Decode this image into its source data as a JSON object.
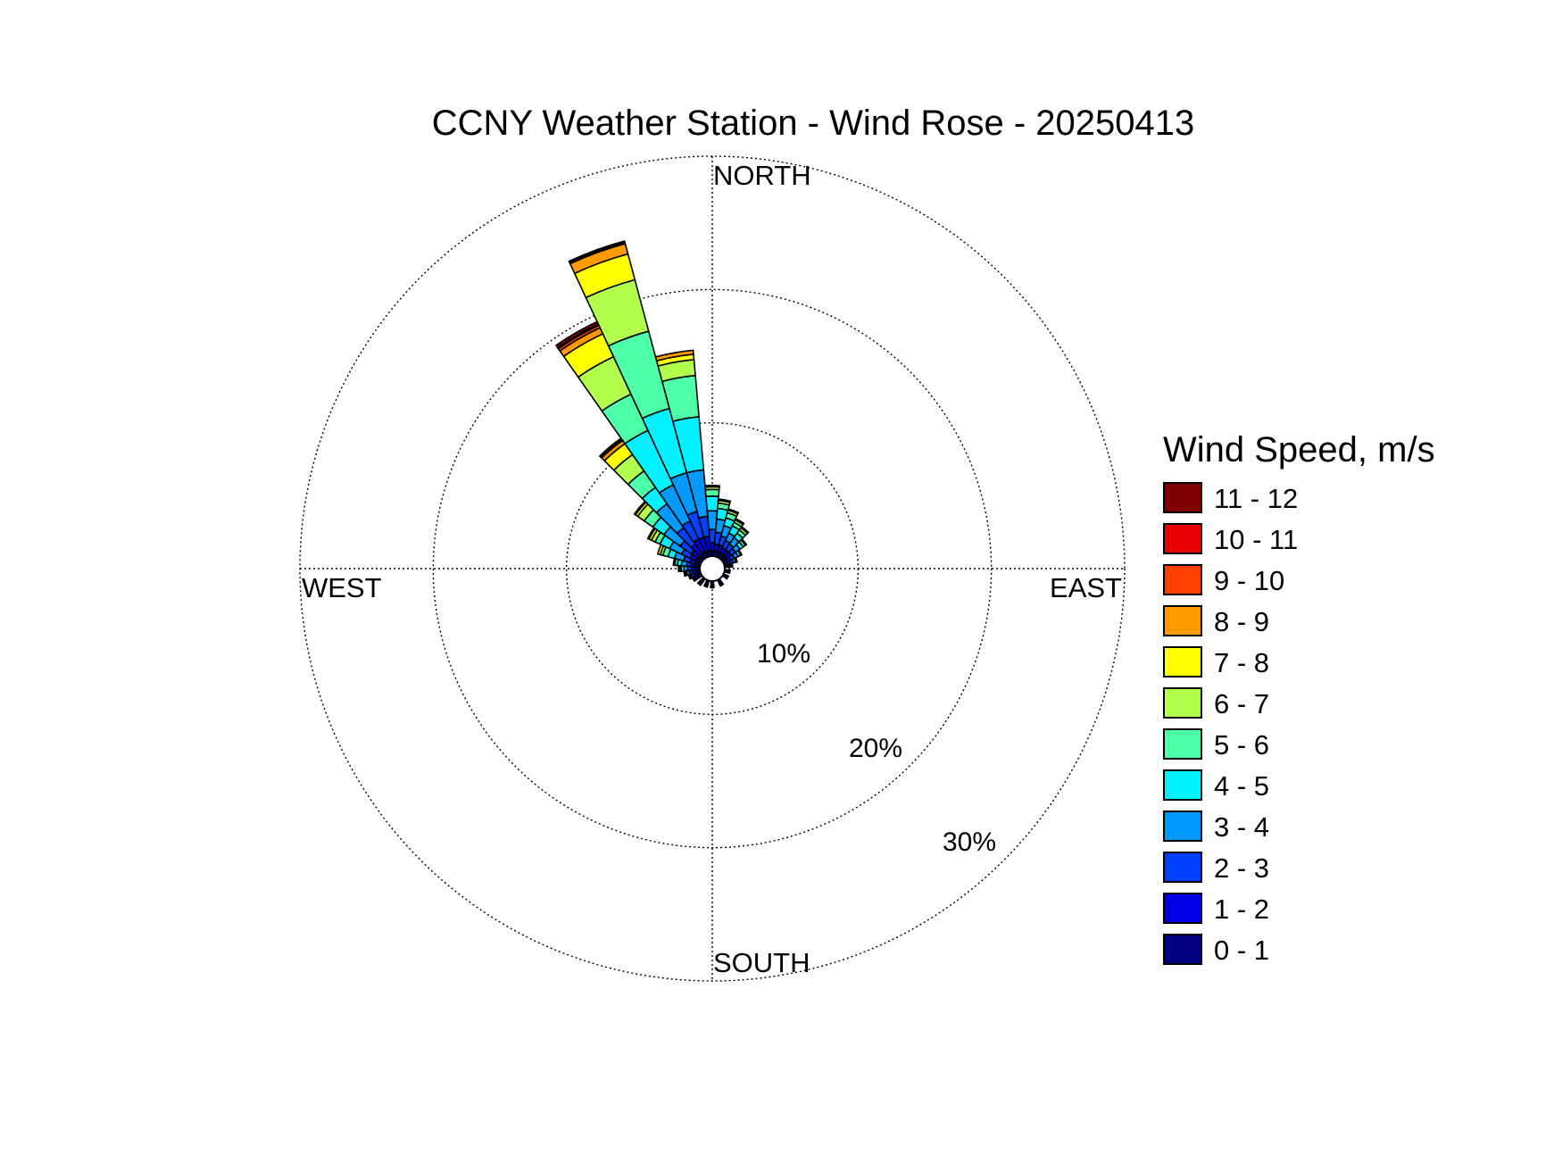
{
  "chart_data": {
    "type": "polar-stacked-bar",
    "title": "CCNY Weather Station - Wind Rose - 20250413",
    "directions_label": {
      "north": "NORTH",
      "south": "SOUTH",
      "east": "EAST",
      "west": "WEST"
    },
    "radial_ticks": [
      10,
      20,
      30
    ],
    "radial_tick_labels": [
      "10%",
      "20%",
      "30%"
    ],
    "rmax": 30,
    "grid": true,
    "legend": {
      "title": "Wind Speed, m/s",
      "placement": "right"
    },
    "speed_bins": [
      {
        "label": "0 - 1",
        "color": "#000080"
      },
      {
        "label": "1 - 2",
        "color": "#0000e6"
      },
      {
        "label": "2 - 3",
        "color": "#0040ff"
      },
      {
        "label": "3 - 4",
        "color": "#0099ff"
      },
      {
        "label": "4 - 5",
        "color": "#00f2ff"
      },
      {
        "label": "5 - 6",
        "color": "#4dffa6"
      },
      {
        "label": "6 - 7",
        "color": "#b3ff4d"
      },
      {
        "label": "7 - 8",
        "color": "#ffff00"
      },
      {
        "label": "8 - 9",
        "color": "#ff9900"
      },
      {
        "label": "9 - 10",
        "color": "#ff4000"
      },
      {
        "label": "10 - 11",
        "color": "#e60000"
      },
      {
        "label": "11 - 12",
        "color": "#800000"
      }
    ],
    "sector_width_deg": 10,
    "sectors": [
      {
        "direction_deg": 350,
        "cumulative": [
          0.4,
          1.5,
          3.0,
          6.5,
          10.5,
          13.6,
          14.8,
          15.2,
          15.5,
          15.5,
          15.5,
          15.5
        ]
      },
      {
        "direction_deg": 340,
        "cumulative": [
          0.4,
          1.5,
          3.5,
          6.5,
          11.5,
          17.5,
          21.5,
          23.5,
          24.3,
          24.4,
          24.5,
          24.5
        ]
      },
      {
        "direction_deg": 330,
        "cumulative": [
          0.4,
          1.5,
          3.0,
          6.0,
          10.5,
          13.5,
          16.6,
          18.5,
          19.0,
          19.2,
          19.3,
          19.5
        ]
      },
      {
        "direction_deg": 320,
        "cumulative": [
          0.4,
          1.3,
          2.8,
          5.0,
          6.5,
          8.0,
          9.5,
          10.5,
          10.8,
          10.9,
          11.0,
          11.0
        ]
      },
      {
        "direction_deg": 310,
        "cumulative": [
          0.4,
          1.0,
          2.0,
          3.5,
          4.5,
          5.3,
          5.9,
          6.1,
          6.2,
          6.2,
          6.2,
          6.2
        ]
      },
      {
        "direction_deg": 300,
        "cumulative": [
          0.4,
          0.9,
          1.6,
          2.6,
          3.4,
          3.8,
          4.1,
          4.3,
          4.4,
          4.4,
          4.4,
          4.4
        ]
      },
      {
        "direction_deg": 290,
        "cumulative": [
          0.4,
          0.8,
          1.3,
          2.0,
          2.5,
          2.9,
          3.1,
          3.3,
          3.3,
          3.3,
          3.3,
          3.3
        ]
      },
      {
        "direction_deg": 280,
        "cumulative": [
          0.4,
          0.7,
          1.0,
          1.4,
          1.7,
          1.9,
          2.0,
          2.0,
          2.0,
          2.0,
          2.0,
          2.0
        ]
      },
      {
        "direction_deg": 270,
        "cumulative": [
          0.3,
          0.6,
          0.9,
          1.2,
          1.4,
          1.5,
          1.6,
          1.6,
          1.6,
          1.6,
          1.6,
          1.6
        ]
      },
      {
        "direction_deg": 260,
        "cumulative": [
          0.3,
          0.6,
          0.8,
          1.0,
          1.1,
          1.2,
          1.2,
          1.2,
          1.2,
          1.2,
          1.2,
          1.2
        ]
      },
      {
        "direction_deg": 250,
        "cumulative": [
          0.3,
          0.5,
          0.7,
          0.8,
          0.9,
          0.9,
          0.9,
          0.9,
          0.9,
          0.9,
          0.9,
          0.9
        ]
      },
      {
        "direction_deg": 240,
        "cumulative": [
          0.3,
          0.5,
          0.6,
          0.7,
          0.7,
          0.7,
          0.7,
          0.7,
          0.7,
          0.7,
          0.7,
          0.7
        ]
      },
      {
        "direction_deg": 0,
        "cumulative": [
          0.4,
          1.0,
          2.0,
          3.4,
          4.5,
          5.0,
          5.2,
          5.3,
          5.3,
          5.3,
          5.3,
          5.3
        ]
      },
      {
        "direction_deg": 10,
        "cumulative": [
          0.4,
          0.9,
          1.8,
          2.8,
          3.6,
          4.0,
          4.2,
          4.3,
          4.3,
          4.3,
          4.3,
          4.3
        ]
      },
      {
        "direction_deg": 20,
        "cumulative": [
          0.4,
          0.9,
          1.6,
          2.4,
          3.0,
          3.4,
          3.6,
          3.7,
          3.7,
          3.7,
          3.7,
          3.7
        ]
      },
      {
        "direction_deg": 30,
        "cumulative": [
          0.4,
          0.8,
          1.4,
          2.0,
          2.6,
          2.9,
          3.1,
          3.2,
          3.2,
          3.2,
          3.2,
          3.2
        ]
      },
      {
        "direction_deg": 40,
        "cumulative": [
          0.4,
          0.8,
          1.3,
          1.9,
          2.3,
          2.6,
          2.8,
          2.9,
          2.9,
          2.9,
          2.9,
          2.9
        ]
      },
      {
        "direction_deg": 50,
        "cumulative": [
          0.4,
          0.8,
          1.2,
          1.6,
          1.9,
          2.1,
          2.2,
          2.2,
          2.2,
          2.2,
          2.2,
          2.2
        ]
      },
      {
        "direction_deg": 60,
        "cumulative": [
          0.3,
          0.6,
          0.9,
          1.2,
          1.4,
          1.5,
          1.5,
          1.5,
          1.5,
          1.5,
          1.5,
          1.5
        ]
      },
      {
        "direction_deg": 70,
        "cumulative": [
          0.3,
          0.5,
          0.7,
          0.9,
          1.0,
          1.0,
          1.0,
          1.0,
          1.0,
          1.0,
          1.0,
          1.0
        ]
      },
      {
        "direction_deg": 80,
        "cumulative": [
          0.3,
          0.4,
          0.5,
          0.6,
          0.6,
          0.6,
          0.6,
          0.6,
          0.6,
          0.6,
          0.6,
          0.6
        ]
      },
      {
        "direction_deg": 220,
        "cumulative": [
          0.3,
          0.4,
          0.5,
          0.6,
          0.6,
          0.6,
          0.6,
          0.6,
          0.6,
          0.6,
          0.6,
          0.6
        ]
      },
      {
        "direction_deg": 200,
        "cumulative": [
          0.3,
          0.4,
          0.5,
          0.5,
          0.5,
          0.5,
          0.5,
          0.5,
          0.5,
          0.5,
          0.5,
          0.5
        ]
      },
      {
        "direction_deg": 180,
        "cumulative": [
          0.3,
          0.4,
          0.5,
          0.5,
          0.5,
          0.5,
          0.5,
          0.5,
          0.5,
          0.5,
          0.5,
          0.5
        ]
      },
      {
        "direction_deg": 150,
        "cumulative": [
          0.3,
          0.4,
          0.5,
          0.5,
          0.5,
          0.5,
          0.5,
          0.5,
          0.5,
          0.5,
          0.5,
          0.5
        ]
      },
      {
        "direction_deg": 120,
        "cumulative": [
          0.3,
          0.4,
          0.4,
          0.4,
          0.4,
          0.4,
          0.4,
          0.4,
          0.4,
          0.4,
          0.4,
          0.4
        ]
      },
      {
        "direction_deg": 100,
        "cumulative": [
          0.3,
          0.4,
          0.4,
          0.4,
          0.4,
          0.4,
          0.4,
          0.4,
          0.4,
          0.4,
          0.4,
          0.4
        ]
      }
    ]
  }
}
